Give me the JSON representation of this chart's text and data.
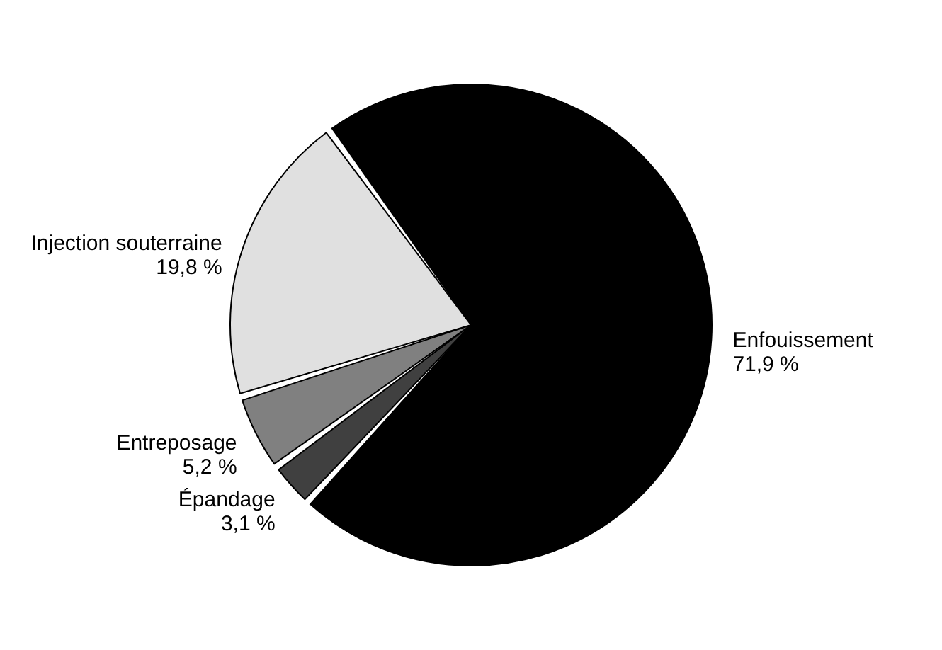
{
  "chart_data": {
    "type": "pie",
    "categories": [
      "Enfouissement",
      "Épandage",
      "Entreposage",
      "Injection souterraine"
    ],
    "values": [
      71.9,
      3.1,
      5.2,
      19.8
    ],
    "colors": [
      "#000000",
      "#404040",
      "#808080",
      "#e0e0e0"
    ],
    "value_labels": [
      "71,9 %",
      "3,1 %",
      "5,2 %",
      "19,8 %"
    ],
    "legend": false
  }
}
